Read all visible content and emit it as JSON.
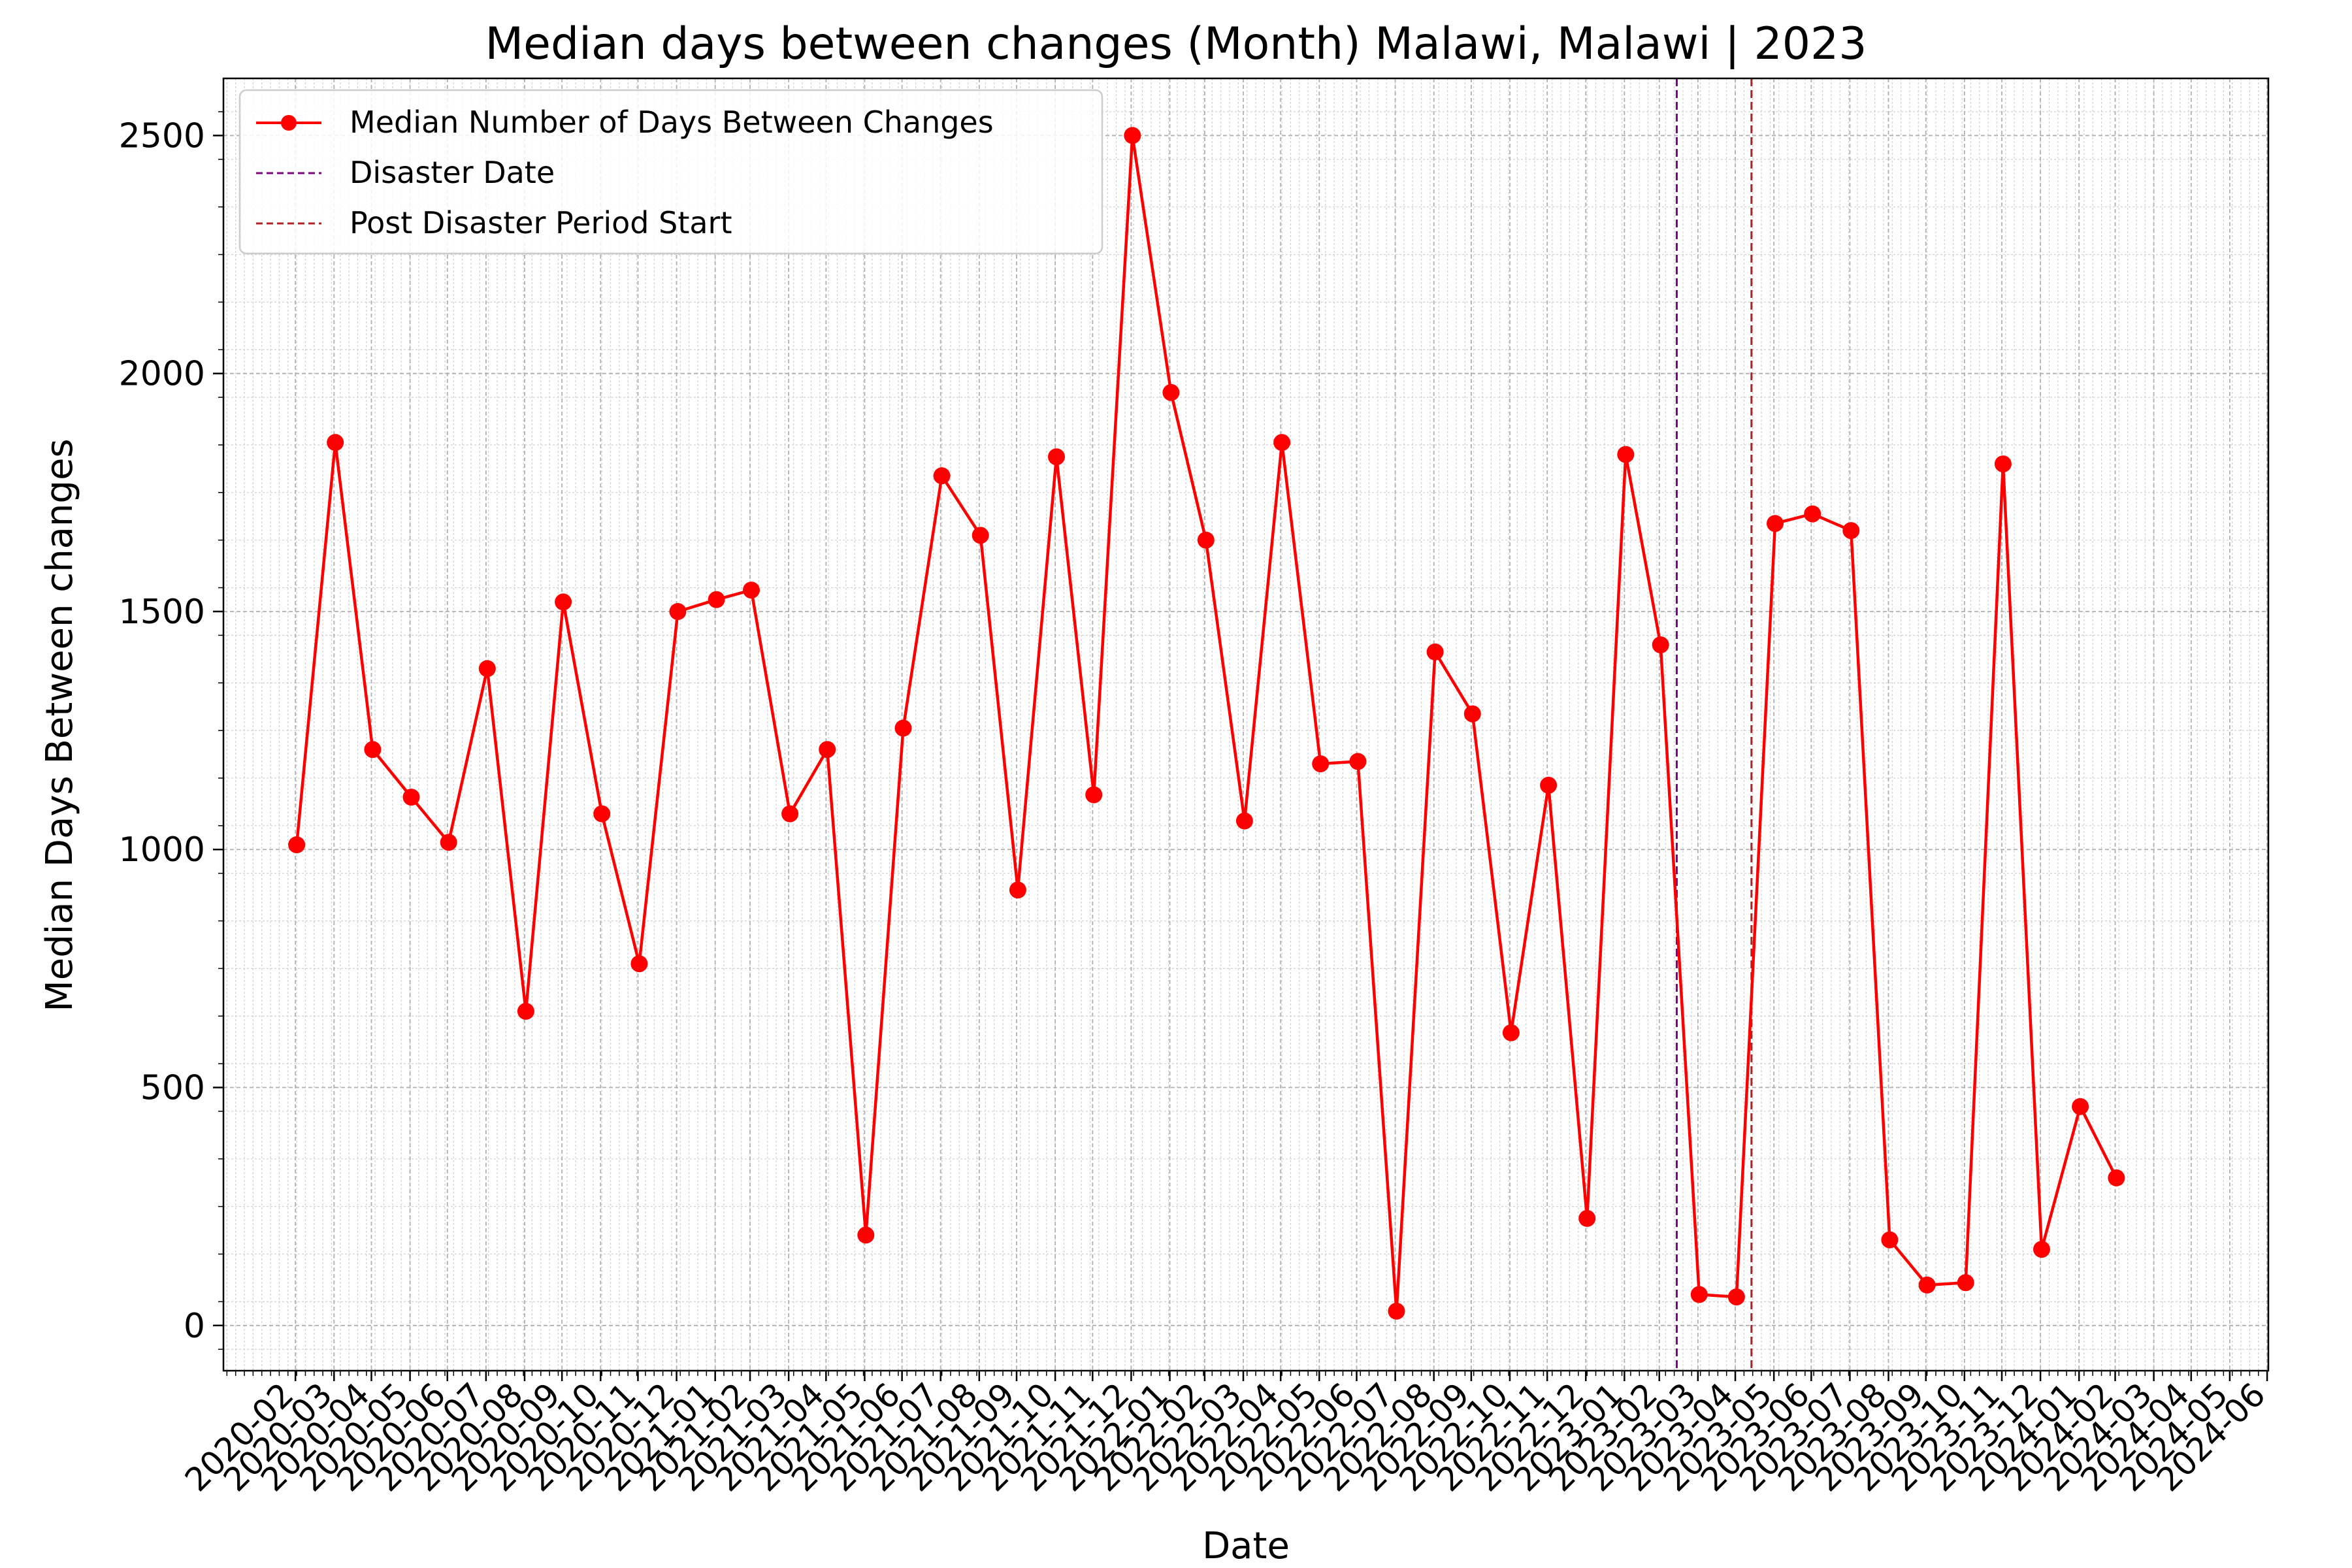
{
  "chart_data": {
    "type": "line",
    "title": "Median days between changes (Month) Malawi, Malawi | 2023",
    "xlabel": "Date",
    "ylabel": "Median Days Between changes",
    "ylim": [
      -95,
      2620
    ],
    "yticks": [
      0,
      500,
      1000,
      1500,
      2000,
      2500
    ],
    "xticks": [
      "2020-02",
      "2020-03",
      "2020-04",
      "2020-05",
      "2020-06",
      "2020-07",
      "2020-08",
      "2020-09",
      "2020-10",
      "2020-11",
      "2020-12",
      "2021-01",
      "2021-02",
      "2021-03",
      "2021-04",
      "2021-05",
      "2021-06",
      "2021-07",
      "2021-08",
      "2021-09",
      "2021-10",
      "2021-11",
      "2021-12",
      "2022-01",
      "2022-02",
      "2022-03",
      "2022-04",
      "2022-05",
      "2022-06",
      "2022-07",
      "2022-08",
      "2022-09",
      "2022-10",
      "2022-11",
      "2022-12",
      "2023-01",
      "2023-02",
      "2023-03",
      "2023-04",
      "2023-05",
      "2023-06",
      "2023-07",
      "2023-08",
      "2023-09",
      "2023-10",
      "2023-11",
      "2023-12",
      "2024-01",
      "2024-02",
      "2024-03",
      "2024-04",
      "2024-05",
      "2024-06"
    ],
    "grid": true,
    "legend_position": "top-left",
    "series": [
      {
        "name": "Median Number of Days Between Changes",
        "color": "#ff0000",
        "x": [
          "2020-03",
          "2020-04",
          "2020-05",
          "2020-06",
          "2020-07",
          "2020-08",
          "2020-09",
          "2020-10",
          "2020-11",
          "2020-12",
          "2021-01",
          "2021-02",
          "2021-03",
          "2021-04",
          "2021-05",
          "2021-06",
          "2021-07",
          "2021-08",
          "2021-09",
          "2021-10",
          "2021-11",
          "2021-12",
          "2022-01",
          "2022-02",
          "2022-03",
          "2022-04",
          "2022-05",
          "2022-06",
          "2022-07",
          "2022-08",
          "2022-09",
          "2022-10",
          "2022-11",
          "2022-12",
          "2023-01",
          "2023-02",
          "2023-03",
          "2023-04",
          "2023-05",
          "2023-06",
          "2023-07",
          "2023-08",
          "2023-09",
          "2023-10",
          "2023-11",
          "2023-12",
          "2024-01",
          "2024-02",
          "2024-03"
        ],
        "values": [
          1010,
          1855,
          1210,
          1110,
          1015,
          1380,
          660,
          1520,
          1075,
          760,
          1500,
          1525,
          1545,
          1075,
          1210,
          190,
          1255,
          1785,
          1660,
          915,
          1825,
          1115,
          2500,
          1960,
          1650,
          1060,
          1855,
          1180,
          1185,
          30,
          1415,
          1285,
          615,
          1135,
          225,
          1830,
          1430,
          65,
          60,
          1685,
          1705,
          1670,
          180,
          85,
          90,
          1810,
          160,
          460,
          310
        ]
      }
    ],
    "vlines": [
      {
        "name": "Disaster Date",
        "x": "2023-03-14",
        "color": "#800080",
        "style": "dashed"
      },
      {
        "name": "Post Disaster Period Start",
        "x": "2023-05-13",
        "color": "#b22222",
        "style": "dashed"
      }
    ]
  }
}
